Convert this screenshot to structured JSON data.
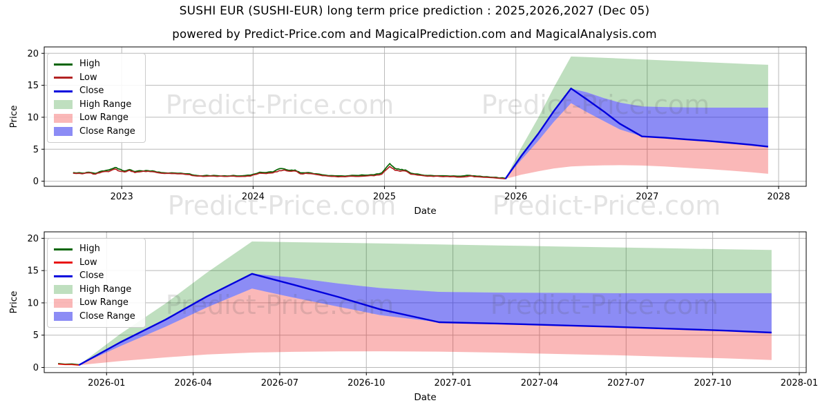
{
  "header": {
    "title": "SUSHI EUR (SUSHI-EUR) long term price prediction : 2025,2026,2027 (Dec 05)",
    "subtitle": "powered by Predict-Price.com and MagicalPrediction.com and MagicalAnalysis.com"
  },
  "watermark_text": "Predict-Price.com",
  "colors": {
    "high": "#006400",
    "low_overview": "#b22222",
    "low_detail": "#e81111",
    "close": "#0000dd",
    "high_range": "rgba(0,128,0,0.25)",
    "low_range": "rgba(240,20,20,0.30)",
    "close_range": "rgba(25,25,235,0.50)",
    "grid": "#b8b8b8",
    "spine": "#000000",
    "watermark": "rgba(80,80,80,0.16)",
    "tick_text": "#000000"
  },
  "legend_labels": [
    "High",
    "Low",
    "Close",
    "High Range",
    "Low Range",
    "Close Range"
  ],
  "prediction_series": {
    "x": [
      2025.92,
      2026.04,
      2026.17,
      2026.29,
      2026.42,
      2026.54,
      2026.67,
      2026.79,
      2026.96,
      2027.13,
      2027.29,
      2027.46,
      2027.63,
      2027.79,
      2027.92
    ],
    "high_top": [
      0.35,
      5.2,
      9.9,
      14.7,
      19.5,
      19.4,
      19.3,
      19.2,
      19.05,
      18.9,
      18.75,
      18.6,
      18.45,
      18.3,
      18.2
    ],
    "close_upper": [
      0.35,
      3.9,
      7.4,
      11.0,
      14.5,
      13.9,
      13.0,
      12.3,
      11.7,
      11.6,
      11.55,
      11.5,
      11.5,
      11.5,
      11.5
    ],
    "close": [
      0.35,
      3.9,
      7.4,
      11.0,
      14.5,
      12.8,
      10.9,
      9.0,
      7.0,
      6.8,
      6.55,
      6.3,
      6.0,
      5.7,
      5.4
    ],
    "close_lower": [
      0.35,
      3.3,
      6.3,
      9.3,
      12.2,
      10.8,
      9.4,
      8.1,
      7.0,
      6.8,
      6.55,
      6.3,
      6.0,
      5.7,
      5.4
    ],
    "low_bottom": [
      0.35,
      1.0,
      1.55,
      2.0,
      2.3,
      2.42,
      2.48,
      2.5,
      2.45,
      2.3,
      2.1,
      1.9,
      1.65,
      1.4,
      1.15
    ]
  },
  "chart_data": [
    {
      "type": "line",
      "name": "overview",
      "xlabel": "Date",
      "ylabel": "Price",
      "xlim": [
        2022.41,
        2028.21
      ],
      "ylim": [
        -0.8,
        21.0
      ],
      "grid": true,
      "legend_position": "upper left",
      "xticks": [
        {
          "v": 2023,
          "l": "2023"
        },
        {
          "v": 2024,
          "l": "2024"
        },
        {
          "v": 2025,
          "l": "2025"
        },
        {
          "v": 2026,
          "l": "2026"
        },
        {
          "v": 2027,
          "l": "2027"
        },
        {
          "v": 2028,
          "l": "2028"
        }
      ],
      "yticks": [
        {
          "v": 0,
          "l": "0"
        },
        {
          "v": 5,
          "l": "5"
        },
        {
          "v": 10,
          "l": "10"
        },
        {
          "v": 15,
          "l": "15"
        },
        {
          "v": 20,
          "l": "20"
        }
      ],
      "low_color_key": "low_overview",
      "history": {
        "x": [
          2022.63,
          2022.7,
          2022.75,
          2022.8,
          2022.85,
          2022.9,
          2022.95,
          2022.98,
          2023.02,
          2023.06,
          2023.1,
          2023.15,
          2023.2,
          2023.25,
          2023.3,
          2023.38,
          2023.45,
          2023.5,
          2023.55,
          2023.62,
          2023.7,
          2023.78,
          2023.85,
          2023.92,
          2023.98,
          2024.05,
          2024.1,
          2024.15,
          2024.2,
          2024.24,
          2024.28,
          2024.32,
          2024.36,
          2024.42,
          2024.48,
          2024.55,
          2024.62,
          2024.7,
          2024.78,
          2024.85,
          2024.92,
          2024.98,
          2025.04,
          2025.08,
          2025.12,
          2025.16,
          2025.2,
          2025.28,
          2025.35,
          2025.42,
          2025.5,
          2025.58,
          2025.65,
          2025.7,
          2025.78,
          2025.85,
          2025.92
        ],
        "low": [
          1.25,
          1.15,
          1.3,
          1.1,
          1.45,
          1.5,
          1.9,
          1.6,
          1.45,
          1.7,
          1.35,
          1.5,
          1.55,
          1.45,
          1.25,
          1.2,
          1.15,
          1.05,
          0.85,
          0.75,
          0.8,
          0.75,
          0.8,
          0.75,
          0.8,
          1.25,
          1.2,
          1.3,
          1.65,
          1.75,
          1.55,
          1.6,
          1.15,
          1.2,
          1.05,
          0.85,
          0.75,
          0.7,
          0.75,
          0.8,
          0.85,
          1.1,
          2.3,
          1.7,
          1.55,
          1.6,
          1.1,
          0.9,
          0.8,
          0.75,
          0.7,
          0.65,
          0.8,
          0.7,
          0.6,
          0.5,
          0.38
        ],
        "high": [
          1.35,
          1.25,
          1.4,
          1.22,
          1.6,
          1.75,
          2.15,
          1.9,
          1.6,
          1.82,
          1.5,
          1.62,
          1.65,
          1.55,
          1.35,
          1.3,
          1.25,
          1.15,
          0.95,
          0.85,
          0.9,
          0.85,
          0.9,
          0.85,
          0.95,
          1.4,
          1.35,
          1.45,
          1.95,
          1.9,
          1.7,
          1.75,
          1.3,
          1.35,
          1.15,
          0.95,
          0.85,
          0.8,
          0.9,
          0.95,
          1.0,
          1.3,
          2.75,
          2.0,
          1.8,
          1.75,
          1.25,
          1.0,
          0.9,
          0.85,
          0.8,
          0.78,
          0.9,
          0.8,
          0.7,
          0.6,
          0.45
        ]
      },
      "shows_prediction": true
    },
    {
      "type": "line",
      "name": "prediction-detail",
      "xlabel": "Date",
      "ylabel": "Price",
      "xlim": [
        2025.82,
        2028.02
      ],
      "ylim": [
        -0.8,
        21.0
      ],
      "grid": true,
      "legend_position": "upper left",
      "xticks": [
        {
          "v": 2026.0,
          "l": "2026-01"
        },
        {
          "v": 2026.25,
          "l": "2026-04"
        },
        {
          "v": 2026.5,
          "l": "2026-07"
        },
        {
          "v": 2026.75,
          "l": "2026-10"
        },
        {
          "v": 2027.0,
          "l": "2027-01"
        },
        {
          "v": 2027.25,
          "l": "2027-04"
        },
        {
          "v": 2027.5,
          "l": "2027-07"
        },
        {
          "v": 2027.75,
          "l": "2027-10"
        },
        {
          "v": 2028.0,
          "l": "2028-01"
        }
      ],
      "yticks": [
        {
          "v": 0,
          "l": "0"
        },
        {
          "v": 5,
          "l": "5"
        },
        {
          "v": 10,
          "l": "10"
        },
        {
          "v": 15,
          "l": "15"
        },
        {
          "v": 20,
          "l": "20"
        }
      ],
      "low_color_key": "low_detail",
      "history": {
        "x": [
          2025.86,
          2025.92
        ],
        "low": [
          0.52,
          0.35
        ],
        "high": [
          0.6,
          0.42
        ]
      },
      "shows_prediction": true
    }
  ]
}
